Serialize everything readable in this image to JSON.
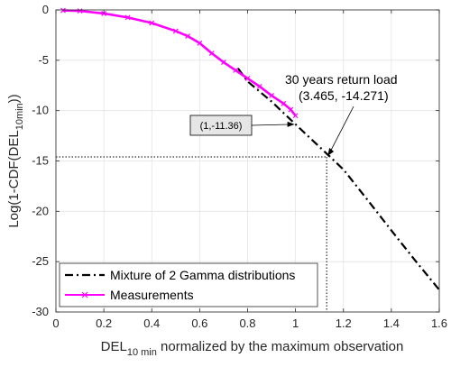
{
  "chart_data": {
    "type": "line",
    "xlabel_main": "DEL",
    "xlabel_sub": "10 min",
    "xlabel_rest": " normalized by the maximum observation",
    "ylabel_pre": "Log(1-CDF(DEL",
    "ylabel_sub": "10min",
    "ylabel_post": "))",
    "xlim": [
      0,
      1.6
    ],
    "ylim": [
      -30,
      0
    ],
    "x_ticks": [
      "0",
      "0.2",
      "0.4",
      "0.6",
      "0.8",
      "1",
      "1.2",
      "1.4",
      "1.6"
    ],
    "y_ticks": [
      "0",
      "-5",
      "-10",
      "-15",
      "-20",
      "-25",
      "-30"
    ],
    "grid": true,
    "legend_position": "bottom-left",
    "series": [
      {
        "name": "Mixture of 2 Gamma distributions",
        "style": "dash-dot",
        "color": "#000000",
        "x": [
          0.76,
          0.8,
          0.9,
          1.0,
          1.1,
          1.2,
          1.3,
          1.4,
          1.5,
          1.6
        ],
        "y": [
          -5.8,
          -7.1,
          -9.1,
          -11.36,
          -13.6,
          -15.85,
          -18.85,
          -21.9,
          -24.9,
          -27.8
        ]
      },
      {
        "name": "Measurements",
        "style": "solid-markers",
        "color": "#ff00ff",
        "x": [
          0.03,
          0.1,
          0.2,
          0.3,
          0.4,
          0.5,
          0.55,
          0.6,
          0.65,
          0.7,
          0.75,
          0.8,
          0.85,
          0.9,
          0.95,
          0.98,
          1.0
        ],
        "y": [
          -0.05,
          -0.1,
          -0.35,
          -0.75,
          -1.3,
          -2.1,
          -2.6,
          -3.3,
          -4.3,
          -5.2,
          -6.0,
          -6.8,
          -7.6,
          -8.5,
          -9.3,
          -9.9,
          -10.5
        ]
      }
    ],
    "annotations": [
      {
        "text": "(1,-11.36)",
        "x": 1.0,
        "y": -11.36
      },
      {
        "line1": "30 years return load",
        "line2": "(3.465, -14.271)",
        "x": 1.13,
        "y": -14.6
      }
    ],
    "reference_lines": {
      "x": 1.13,
      "y": -14.6
    }
  }
}
